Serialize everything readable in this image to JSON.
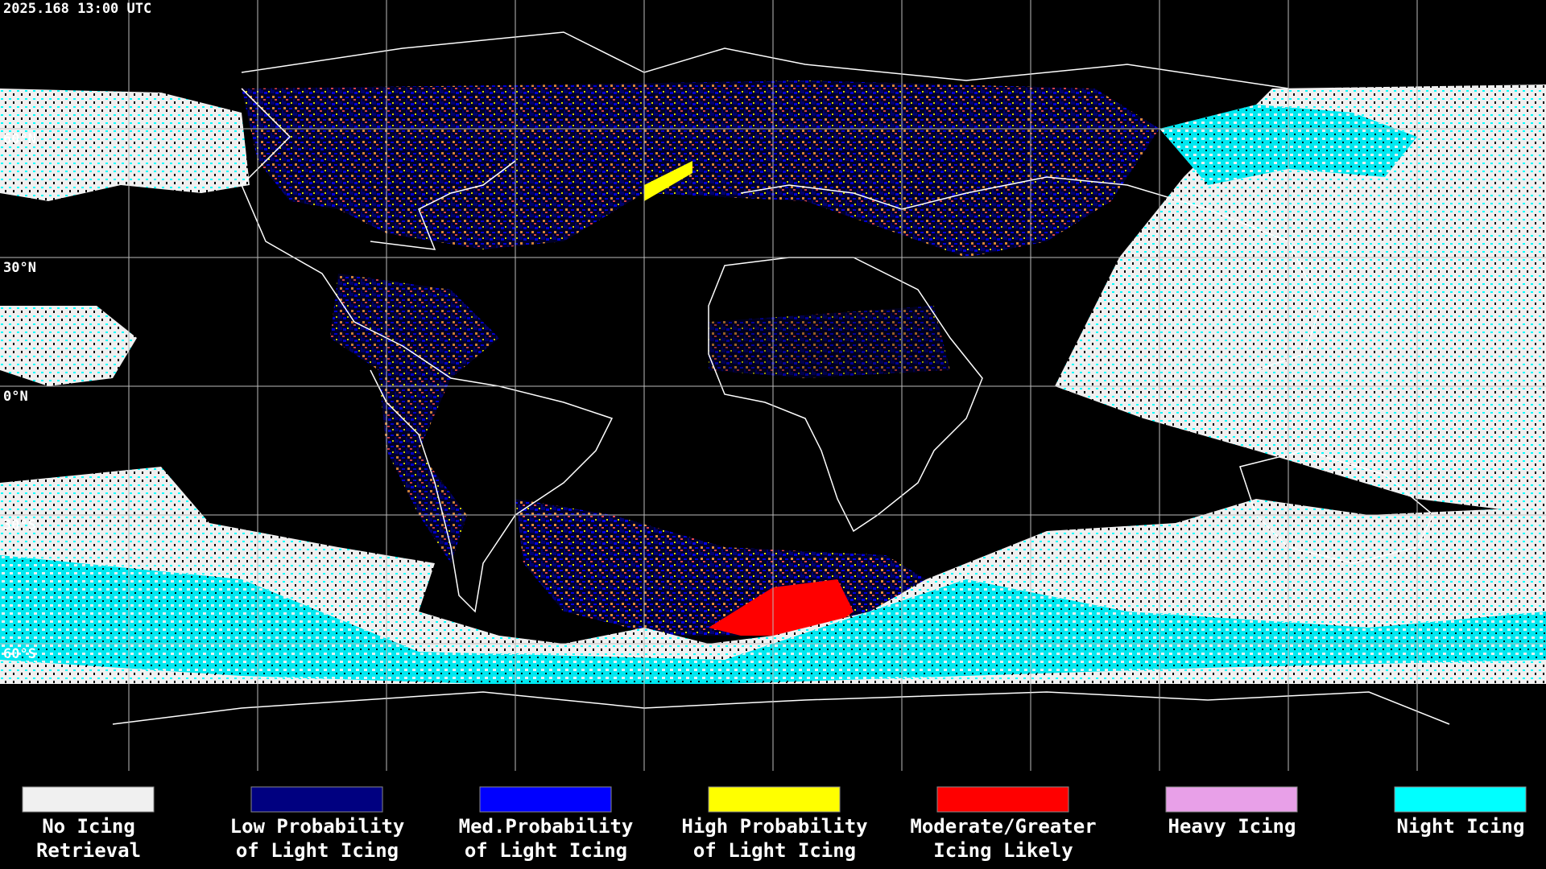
{
  "header": {
    "timestamp": "2025.168 13:00 UTC"
  },
  "map": {
    "lat_labels": [
      "60°N",
      "30°N",
      "0°N",
      "30°S",
      "60°S"
    ]
  },
  "legend": [
    {
      "color": "#f0f0f0",
      "label": [
        "No Icing",
        "Retrieval"
      ]
    },
    {
      "color": "#000080",
      "label": [
        "Low Probability",
        "of Light Icing"
      ]
    },
    {
      "color": "#0000ff",
      "label": [
        "Med.Probability",
        "of Light Icing"
      ]
    },
    {
      "color": "#ffff00",
      "label": [
        "High Probability",
        "of Light Icing"
      ]
    },
    {
      "color": "#ff0000",
      "label": [
        "Moderate/Greater",
        "Icing Likely"
      ]
    },
    {
      "color": "#e8a0e8",
      "label": [
        "Heavy Icing"
      ]
    },
    {
      "color": "#00ffff",
      "label": [
        "Night Icing"
      ]
    }
  ]
}
